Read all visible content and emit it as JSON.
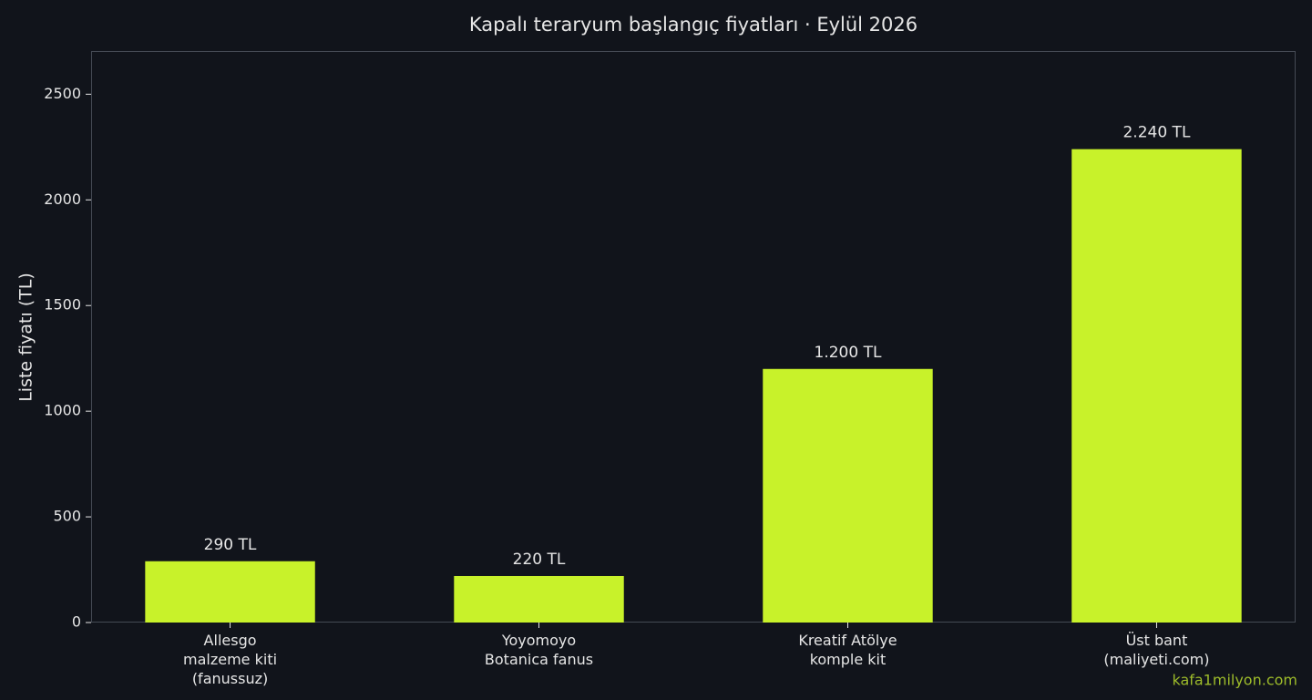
{
  "chart_data": {
    "type": "bar",
    "title": "Kapalı teraryum başlangıç fiyatları · Eylül 2026",
    "y_label": "Liste fiyatı (TL)",
    "categories": [
      "Allesgo\nmalzeme kiti\n(fanussuz)",
      "Yoyomoyo\nBotanica fanus",
      "Kreatif Atölye\nkomple kit",
      "Üst bant\n(maliyeti.com)"
    ],
    "values": [
      290,
      220,
      1200,
      2240
    ],
    "value_labels": [
      "290 TL",
      "220 TL",
      "1.200 TL",
      "2.240 TL"
    ],
    "color": "#c8f22a",
    "ylim": [
      0,
      2700
    ],
    "yticks": [
      0,
      500,
      1000,
      1500,
      2000,
      2500
    ],
    "grid": false,
    "watermark": "kafa1milyon.com"
  }
}
